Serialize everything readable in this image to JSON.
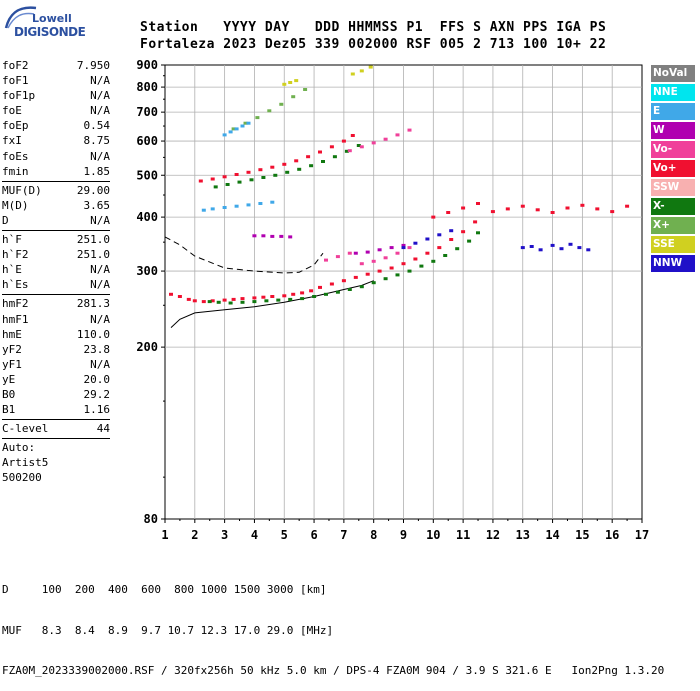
{
  "logo": {
    "line1": "Lowell",
    "line2": "DIGISONDE"
  },
  "header": {
    "labels": [
      "Station",
      "YYYY",
      "DAY",
      "DDD",
      "HHMMSS",
      "P1",
      "FFS",
      "S",
      "AXN",
      "PPS",
      "IGA",
      "PS"
    ],
    "values": [
      "Fortaleza",
      "2023",
      "Dez05",
      "339",
      "002000",
      "RSF",
      "005",
      "2",
      "713",
      "100",
      "10+",
      "22"
    ],
    "line1": "Station   YYYY DAY   DDD HHMMSS P1  FFS S AXN PPS IGA PS",
    "line2": "Fortaleza 2023 Dez05 339 002000 RSF 005 2 713 100 10+ 22"
  },
  "params": {
    "group1": [
      {
        "name": "foF2",
        "value": "7.950"
      },
      {
        "name": "foF1",
        "value": "N/A"
      },
      {
        "name": "foF1p",
        "value": "N/A"
      },
      {
        "name": "foE",
        "value": "N/A"
      },
      {
        "name": "foEp",
        "value": "0.54"
      },
      {
        "name": "fxI",
        "value": "8.75"
      },
      {
        "name": "foEs",
        "value": "N/A"
      },
      {
        "name": "fmin",
        "value": "1.85"
      }
    ],
    "group2": [
      {
        "name": "MUF(D)",
        "value": "29.00"
      },
      {
        "name": "M(D)",
        "value": "3.65"
      },
      {
        "name": "D",
        "value": "N/A"
      }
    ],
    "group3": [
      {
        "name": "h`F",
        "value": "251.0"
      },
      {
        "name": "h`F2",
        "value": "251.0"
      },
      {
        "name": "h`E",
        "value": "N/A"
      },
      {
        "name": "h`Es",
        "value": "N/A"
      }
    ],
    "group4": [
      {
        "name": "hmF2",
        "value": "281.3"
      },
      {
        "name": "hmF1",
        "value": "N/A"
      },
      {
        "name": "hmE",
        "value": "110.0"
      },
      {
        "name": "yF2",
        "value": "23.8"
      },
      {
        "name": "yF1",
        "value": "N/A"
      },
      {
        "name": "yE",
        "value": "20.0"
      },
      {
        "name": "B0",
        "value": "29.2"
      },
      {
        "name": "B1",
        "value": "1.16"
      }
    ],
    "group5": [
      {
        "name": "C-level",
        "value": "44"
      }
    ],
    "autoscale": [
      "Auto:",
      "Artist5",
      "500200"
    ]
  },
  "legend": [
    {
      "label": "NoVal",
      "color": "#808080"
    },
    {
      "label": "NNE",
      "color": "#00e5ee"
    },
    {
      "label": "E",
      "color": "#40a8e8"
    },
    {
      "label": "W",
      "color": "#b000b0"
    },
    {
      "label": "Vo-",
      "color": "#f0409a"
    },
    {
      "label": "Vo+",
      "color": "#f01030"
    },
    {
      "label": "SSW",
      "color": "#f8b0b0"
    },
    {
      "label": "X-",
      "color": "#107810"
    },
    {
      "label": "X+",
      "color": "#70b050"
    },
    {
      "label": "SSE",
      "color": "#d0d020"
    },
    {
      "label": "NNW",
      "color": "#2010c8"
    }
  ],
  "footer": {
    "line1": "D     100  200  400  600  800 1000 1500 3000 [km]",
    "line2": "MUF   8.3  8.4  8.9  9.7 10.7 12.3 17.0 29.0 [MHz]",
    "line3": "FZA0M_2023339002000.RSF / 320fx256h 50 kHz 5.0 km / DPS-4 FZA0M 904 / 3.9 S 321.6 E   Ion2Png 1.3.20"
  },
  "chart_data": {
    "type": "scatter",
    "title": "",
    "xlabel": "",
    "ylabel": "",
    "xlim": [
      1,
      17
    ],
    "ylim": [
      80,
      900
    ],
    "y_scale": "log",
    "x_ticks": [
      1,
      2,
      3,
      4,
      5,
      6,
      7,
      8,
      9,
      10,
      11,
      12,
      13,
      14,
      15,
      16,
      17
    ],
    "y_ticks": [
      80,
      200,
      300,
      400,
      500,
      600,
      700,
      800,
      900
    ],
    "grid": true,
    "legend_position": "right",
    "series": [
      {
        "color_key": "Vo+",
        "x": [
          1.2,
          1.5,
          1.8,
          2.0,
          2.3,
          2.6,
          3.0,
          3.3,
          3.6,
          4.0,
          4.3,
          4.6,
          5.0,
          5.3,
          5.6,
          5.9,
          6.2,
          6.6,
          7.0,
          7.4,
          7.8,
          8.2,
          8.6,
          9.0,
          9.4,
          9.8,
          10.2,
          10.6,
          11.0,
          11.4
        ],
        "y": [
          265,
          262,
          258,
          256,
          255,
          256,
          257,
          258,
          259,
          260,
          261,
          262,
          263,
          265,
          267,
          270,
          275,
          280,
          285,
          290,
          295,
          300,
          305,
          312,
          320,
          330,
          340,
          355,
          370,
          390
        ]
      },
      {
        "color_key": "X-",
        "x": [
          2.5,
          2.8,
          3.2,
          3.6,
          4.0,
          4.4,
          4.8,
          5.2,
          5.6,
          6.0,
          6.4,
          6.8,
          7.2,
          7.6,
          8.0,
          8.4,
          8.8,
          9.2,
          9.6,
          10.0,
          10.4,
          10.8,
          11.2,
          11.5
        ],
        "y": [
          255,
          254,
          253,
          254,
          255,
          256,
          257,
          258,
          259,
          262,
          265,
          268,
          272,
          276,
          282,
          288,
          294,
          300,
          308,
          316,
          326,
          338,
          352,
          368
        ]
      },
      {
        "color_key": "Vo-",
        "x": [
          6.4,
          6.8,
          7.2,
          7.6,
          8.0,
          8.4,
          8.8,
          9.2
        ],
        "y": [
          318,
          324,
          330,
          312,
          316,
          322,
          330,
          340
        ]
      },
      {
        "color_key": "W",
        "x": [
          4.0,
          4.3,
          4.6,
          4.9,
          5.2,
          7.4,
          7.8,
          8.2,
          8.6,
          9.0
        ],
        "y": [
          362,
          362,
          361,
          361,
          360,
          330,
          332,
          336,
          340,
          344
        ]
      },
      {
        "color_key": "Vo+",
        "x": [
          2.2,
          2.6,
          3.0,
          3.4,
          3.8,
          4.2,
          4.6,
          5.0,
          5.4,
          5.8,
          6.2,
          6.6,
          7.0,
          7.3
        ],
        "y": [
          485,
          490,
          496,
          502,
          508,
          515,
          522,
          530,
          540,
          552,
          566,
          582,
          600,
          618
        ]
      },
      {
        "color_key": "X-",
        "x": [
          2.7,
          3.1,
          3.5,
          3.9,
          4.3,
          4.7,
          5.1,
          5.5,
          5.9,
          6.3,
          6.7,
          7.1,
          7.5
        ],
        "y": [
          470,
          476,
          482,
          488,
          494,
          500,
          508,
          516,
          526,
          538,
          552,
          568,
          586
        ]
      },
      {
        "color_key": "Vo-",
        "x": [
          7.2,
          7.6,
          8.0,
          8.4,
          8.8,
          9.2
        ],
        "y": [
          570,
          582,
          594,
          606,
          620,
          636
        ]
      },
      {
        "color_key": "X+",
        "x": [
          3.3,
          3.7,
          4.1,
          4.5,
          4.9,
          5.3,
          5.7
        ],
        "y": [
          640,
          660,
          680,
          705,
          730,
          760,
          790
        ]
      },
      {
        "color_key": "SSE",
        "x": [
          5.0,
          5.2,
          5.4,
          7.3,
          7.6,
          7.9
        ],
        "y": [
          812,
          820,
          828,
          858,
          872,
          890
        ]
      },
      {
        "color_key": "NNW",
        "x": [
          9.0,
          9.4,
          9.8,
          10.2,
          10.6,
          13.0,
          13.3,
          13.6,
          14.0,
          14.3,
          14.6,
          14.9,
          15.2
        ],
        "y": [
          340,
          348,
          356,
          364,
          372,
          340,
          342,
          336,
          344,
          338,
          346,
          340,
          336
        ]
      },
      {
        "color_key": "Vo+",
        "x": [
          10.0,
          10.5,
          11.0,
          11.5,
          12.0,
          12.5,
          13.0,
          13.5,
          14.0,
          14.5,
          15.0,
          15.5,
          16.0,
          16.5
        ],
        "y": [
          400,
          410,
          420,
          430,
          412,
          418,
          424,
          416,
          410,
          420,
          426,
          418,
          412,
          424
        ]
      },
      {
        "color_key": "E",
        "x": [
          2.3,
          2.6,
          3.0,
          3.4,
          3.8,
          4.2,
          4.6
        ],
        "y": [
          415,
          418,
          421,
          424,
          427,
          430,
          433
        ]
      },
      {
        "color_key": "E",
        "x": [
          3.0,
          3.2,
          3.4,
          3.6,
          3.8
        ],
        "y": [
          620,
          630,
          640,
          650,
          660
        ]
      }
    ],
    "profile_curves": [
      {
        "style": "dashed",
        "x": [
          1.0,
          1.5,
          2.0,
          3.0,
          4.0,
          5.0,
          5.5,
          6.0,
          6.3
        ],
        "y": [
          360,
          345,
          325,
          305,
          300,
          297,
          298,
          310,
          330
        ]
      },
      {
        "style": "solid",
        "x": [
          1.2,
          1.5,
          2.0,
          3.0,
          4.0,
          5.0,
          6.0,
          7.0,
          7.6,
          8.0
        ],
        "y": [
          222,
          232,
          240,
          244,
          248,
          254,
          262,
          272,
          278,
          285
        ]
      }
    ]
  }
}
